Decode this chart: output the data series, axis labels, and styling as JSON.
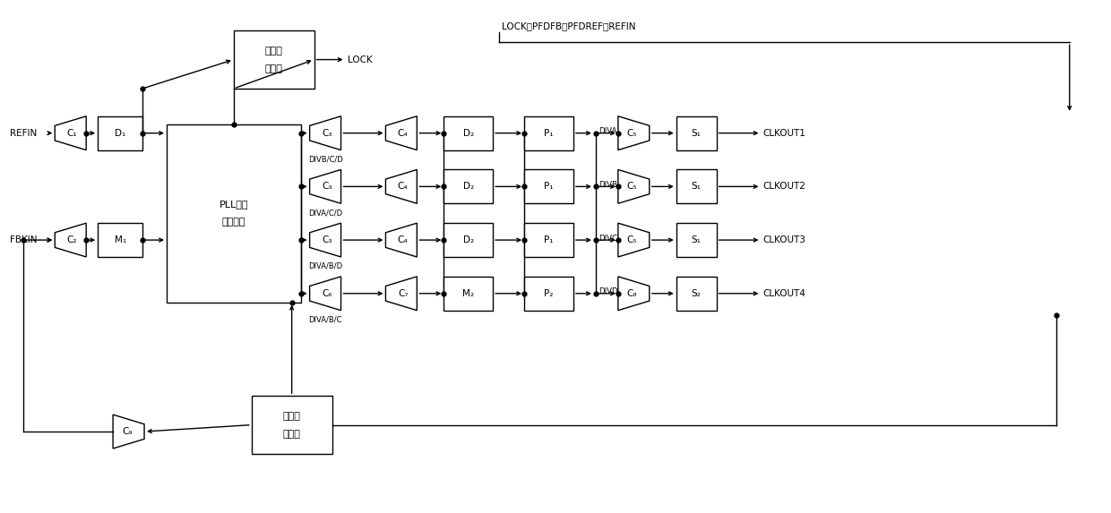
{
  "bg_color": "#ffffff",
  "fig_width": 12.4,
  "fig_height": 5.73,
  "top_label": "LOCK、PFDFB、PFDREF、REFIN",
  "lock_label": "LOCK",
  "refin_label": "REFIN",
  "fbkin_label": "FBKIN",
  "pll_line1": "PLL模拟",
  "pll_line2": "核心单元",
  "loss_line1": "失锁检",
  "loss_line2": "测单元",
  "phase_line1": "相位控",
  "phase_line2": "制模块",
  "rows": [
    {
      "c3_sub": "3",
      "div_label": "DIVB/C/D",
      "c4_sub": "4",
      "d_main": "D",
      "d_sub": "2",
      "p_sub": "1",
      "div_out": "DIVA",
      "c5_sub": "5",
      "s_sub": "1",
      "out_label": "CLKOUT1"
    },
    {
      "c3_sub": "3",
      "div_label": "DIVA/C/D",
      "c4_sub": "4",
      "d_main": "D",
      "d_sub": "2",
      "p_sub": "1",
      "div_out": "DIVB",
      "c5_sub": "5",
      "s_sub": "1",
      "out_label": "CLKOUT2"
    },
    {
      "c3_sub": "3",
      "div_label": "DIVA/B/D",
      "c4_sub": "4",
      "d_main": "D",
      "d_sub": "2",
      "p_sub": "1",
      "div_out": "DIVC",
      "c5_sub": "5",
      "s_sub": "1",
      "out_label": "CLKOUT3"
    },
    {
      "c3_sub": "6",
      "div_label": "DIVA/B/C",
      "c4_sub": "7",
      "d_main": "M",
      "d_sub": "2",
      "p_sub": "2",
      "div_out": "DIVD",
      "c5_sub": "8",
      "s_sub": "2",
      "out_label": "CLKOUT4"
    }
  ]
}
